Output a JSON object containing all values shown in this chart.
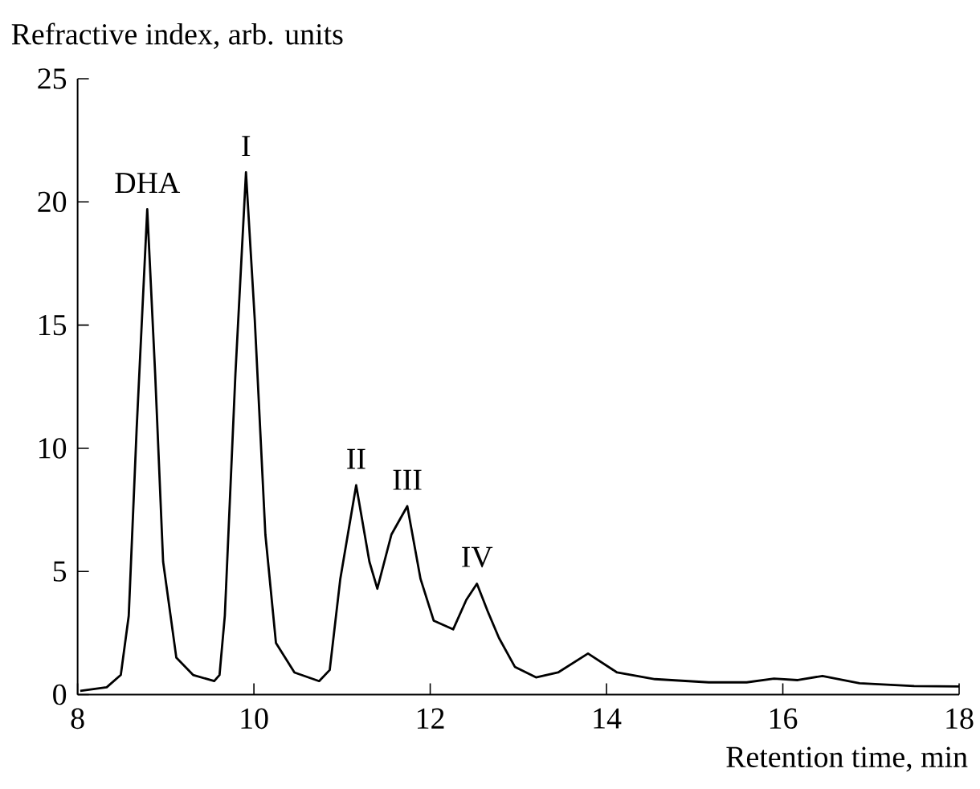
{
  "chart_data": {
    "type": "line",
    "xlabel": "Retention time, min",
    "ylabel": "Refractive index, arb. units",
    "x": [
      8.03,
      8.33,
      8.49,
      8.58,
      8.67,
      8.79,
      8.88,
      8.97,
      9.12,
      9.31,
      9.55,
      9.61,
      9.67,
      9.79,
      9.91,
      10.01,
      10.13,
      10.25,
      10.46,
      10.74,
      10.86,
      10.98,
      11.16,
      11.31,
      11.4,
      11.56,
      11.74,
      11.89,
      12.04,
      12.26,
      12.41,
      12.53,
      12.65,
      12.78,
      12.96,
      13.2,
      13.45,
      13.79,
      14.12,
      14.55,
      15.16,
      15.59,
      15.9,
      16.17,
      16.45,
      16.87,
      17.49,
      18.0
    ],
    "series": [
      {
        "color": "#000000",
        "values": [
          0.15,
          0.3,
          0.8,
          3.2,
          10.8,
          19.7,
          13,
          5.4,
          1.5,
          0.8,
          0.55,
          0.8,
          3.2,
          13,
          21.2,
          15.2,
          6.5,
          2.1,
          0.9,
          0.55,
          1.0,
          4.7,
          8.5,
          5.4,
          4.3,
          6.5,
          7.65,
          4.7,
          3.0,
          2.65,
          3.85,
          4.5,
          3.4,
          2.3,
          1.13,
          0.7,
          0.9,
          1.67,
          0.9,
          0.63,
          0.5,
          0.5,
          0.65,
          0.59,
          0.76,
          0.46,
          0.35,
          0.33
        ]
      }
    ],
    "line_style": "solid",
    "xlim": [
      8,
      18
    ],
    "xticks": [
      8,
      10,
      12,
      14,
      16,
      18
    ],
    "ylim": [
      0,
      25
    ],
    "yticks": [
      0,
      5,
      10,
      15,
      20,
      25
    ],
    "annotations": [
      {
        "text": "DHA",
        "x": 8.79,
        "y": 19.7
      },
      {
        "text": "I",
        "x": 9.91,
        "y": 21.2
      },
      {
        "text": "II",
        "x": 11.16,
        "y": 8.5
      },
      {
        "text": "III",
        "x": 11.74,
        "y": 7.65
      },
      {
        "text": "IV",
        "x": 12.53,
        "y": 4.5
      }
    ]
  }
}
